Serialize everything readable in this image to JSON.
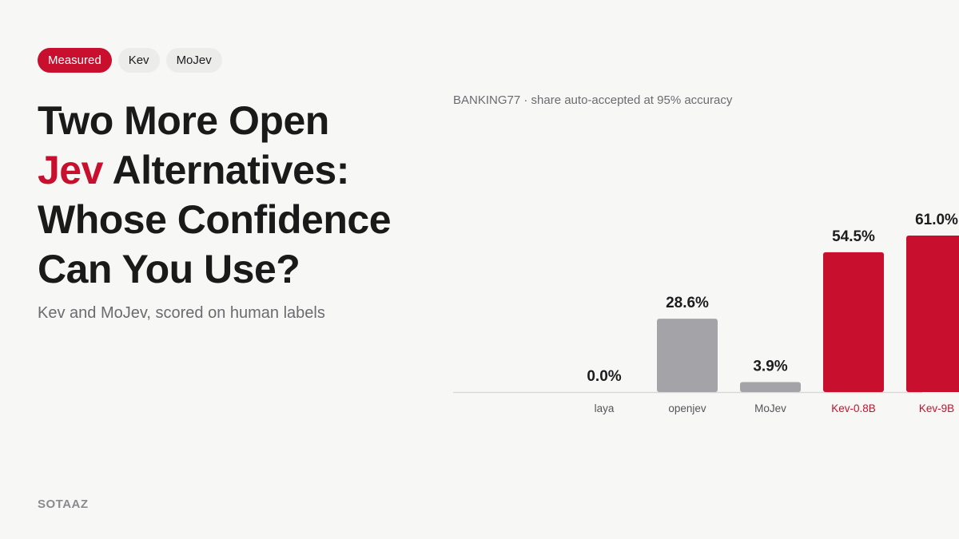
{
  "tags": [
    {
      "label": "Measured",
      "active": true
    },
    {
      "label": "Kev",
      "active": false
    },
    {
      "label": "MoJev",
      "active": false
    }
  ],
  "title": {
    "line1": "Two More Open",
    "highlight": "Jev",
    "line2_rest": " Alternatives:",
    "line3": "Whose Confidence",
    "line4": "Can You Use?"
  },
  "subtitle": "Kev and MoJev, scored on human labels",
  "brand": "SOTAAZ",
  "colors": {
    "accent": "#c8102e",
    "neutral_bar": "#a3a3a8",
    "background": "#f7f7f6"
  },
  "chart_data": {
    "type": "bar",
    "title": "BANKING77 · share auto-accepted at 95% accuracy",
    "categories": [
      "laya",
      "openjev",
      "MoJev",
      "Kev-0.8B",
      "Kev-9B"
    ],
    "values": [
      0.0,
      28.6,
      3.9,
      54.5,
      61.0
    ],
    "value_labels": [
      "0.0%",
      "28.6%",
      "3.9%",
      "54.5%",
      "61.0%"
    ],
    "highlighted": [
      false,
      false,
      false,
      true,
      true
    ],
    "ylim": [
      0,
      61.0
    ],
    "grid": false,
    "legend": "none"
  }
}
